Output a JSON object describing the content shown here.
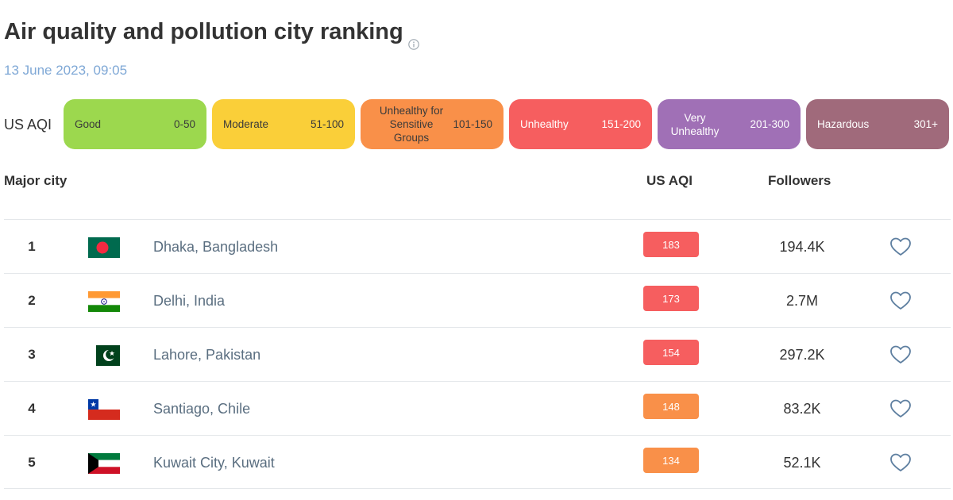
{
  "header": {
    "title": "Air quality and pollution city ranking",
    "timestamp": "13 June 2023, 09:05"
  },
  "legend": {
    "label": "US AQI",
    "items": [
      {
        "name": "Good",
        "range": "0-50",
        "color": "#9cd84e",
        "text_color": "#3a3a3a"
      },
      {
        "name": "Moderate",
        "range": "51-100",
        "color": "#facf39",
        "text_color": "#3a3a3a"
      },
      {
        "name": "Unhealthy for Sensitive Groups",
        "range": "101-150",
        "color": "#f99049",
        "text_color": "#3a3a3a"
      },
      {
        "name": "Unhealthy",
        "range": "151-200",
        "color": "#f65e5f",
        "text_color": "#ffffff"
      },
      {
        "name": "Very Unhealthy",
        "range": "201-300",
        "color": "#a070b6",
        "text_color": "#ffffff"
      },
      {
        "name": "Hazardous",
        "range": "301+",
        "color": "#a06a7b",
        "text_color": "#ffffff"
      }
    ]
  },
  "table": {
    "columns": {
      "city": "Major city",
      "aqi": "US AQI",
      "followers": "Followers"
    },
    "rows": [
      {
        "rank": "1",
        "flag": "bangladesh-flag",
        "city": "Dhaka, Bangladesh",
        "aqi": "183",
        "aqi_color": "#f65e5f",
        "followers": "194.4K"
      },
      {
        "rank": "2",
        "flag": "india-flag",
        "city": "Delhi, India",
        "aqi": "173",
        "aqi_color": "#f65e5f",
        "followers": "2.7M"
      },
      {
        "rank": "3",
        "flag": "pakistan-flag",
        "city": "Lahore, Pakistan",
        "aqi": "154",
        "aqi_color": "#f65e5f",
        "followers": "297.2K"
      },
      {
        "rank": "4",
        "flag": "chile-flag",
        "city": "Santiago, Chile",
        "aqi": "148",
        "aqi_color": "#f99049",
        "followers": "83.2K"
      },
      {
        "rank": "5",
        "flag": "kuwait-flag",
        "city": "Kuwait City, Kuwait",
        "aqi": "134",
        "aqi_color": "#f99049",
        "followers": "52.1K"
      }
    ]
  },
  "icons": {
    "info": "info-icon",
    "follow": "heart-icon"
  }
}
